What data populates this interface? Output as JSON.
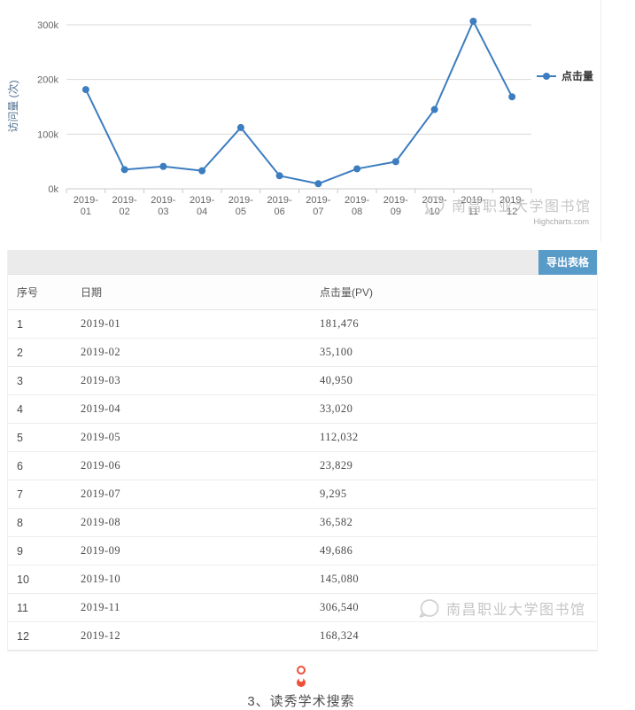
{
  "chart_data": {
    "type": "line",
    "title": "",
    "xlabel": "",
    "ylabel": "访问量 (次)",
    "categories": [
      "2019-01",
      "2019-02",
      "2019-03",
      "2019-04",
      "2019-05",
      "2019-06",
      "2019-07",
      "2019-08",
      "2019-09",
      "2019-10",
      "2019-11",
      "2019-12"
    ],
    "series": [
      {
        "name": "点击量",
        "values": [
          181476,
          35100,
          40950,
          33020,
          112032,
          23829,
          9295,
          36582,
          49686,
          145080,
          306540,
          168324
        ]
      }
    ],
    "ylim": [
      0,
      300000
    ],
    "yticks": [
      0,
      100000,
      200000,
      300000
    ],
    "ytick_labels": [
      "0k",
      "100k",
      "200k",
      "300k"
    ],
    "grid": true,
    "legend_position": "right",
    "line_color": "#3c7dc0"
  },
  "chart": {
    "legend_label": "点击量",
    "credits": "Highcharts.com"
  },
  "watermark": {
    "text": "南昌职业大学图书馆",
    "icon": "chat-bubble-icon"
  },
  "table": {
    "export_button": "导出表格",
    "columns": [
      "序号",
      "日期",
      "点击量(PV)"
    ],
    "rows": [
      [
        "1",
        "2019-01",
        "181,476"
      ],
      [
        "2",
        "2019-02",
        "35,100"
      ],
      [
        "3",
        "2019-03",
        "40,950"
      ],
      [
        "4",
        "2019-04",
        "33,020"
      ],
      [
        "5",
        "2019-05",
        "112,032"
      ],
      [
        "6",
        "2019-06",
        "23,829"
      ],
      [
        "7",
        "2019-07",
        "9,295"
      ],
      [
        "8",
        "2019-08",
        "36,582"
      ],
      [
        "9",
        "2019-09",
        "49,686"
      ],
      [
        "10",
        "2019-10",
        "145,080"
      ],
      [
        "11",
        "2019-11",
        "306,540"
      ],
      [
        "12",
        "2019-12",
        "168,324"
      ]
    ]
  },
  "footer": {
    "section_title": "3、读秀学术搜索"
  },
  "colors": {
    "accent_blue": "#599bc8",
    "line_blue": "#3c7dc0",
    "footer_icon_red": "#ee4f38"
  }
}
